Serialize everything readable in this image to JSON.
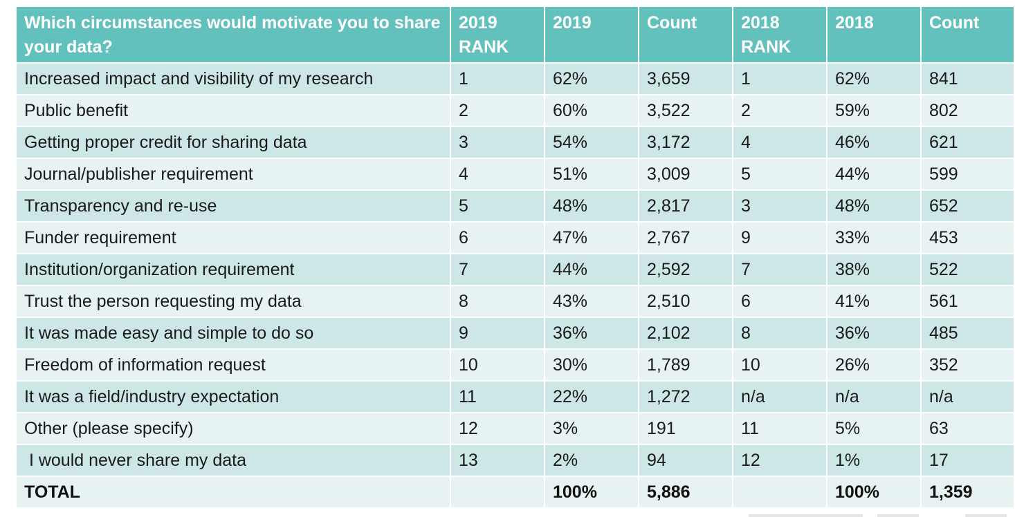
{
  "table": {
    "headers": [
      "Which circumstances would motivate you to share your data?",
      "2019 RANK",
      "2019",
      "Count",
      "2018 RANK",
      "2018",
      "Count"
    ],
    "rows": [
      [
        "Increased impact and visibility of my research",
        "1",
        "62%",
        "3,659",
        "1",
        "62%",
        "841"
      ],
      [
        "Public benefit",
        "2",
        "60%",
        "3,522",
        "2",
        "59%",
        "802"
      ],
      [
        "Getting proper credit for sharing data",
        "3",
        "54%",
        "3,172",
        "4",
        "46%",
        "621"
      ],
      [
        "Journal/publisher requirement",
        "4",
        "51%",
        "3,009",
        "5",
        "44%",
        "599"
      ],
      [
        "Transparency and re-use",
        "5",
        "48%",
        "2,817",
        "3",
        "48%",
        "652"
      ],
      [
        "Funder requirement",
        "6",
        "47%",
        "2,767",
        "9",
        "33%",
        "453"
      ],
      [
        "Institution/organization requirement",
        "7",
        "44%",
        "2,592",
        "7",
        "38%",
        "522"
      ],
      [
        "Trust the person requesting my data",
        "8",
        "43%",
        "2,510",
        "6",
        "41%",
        "561"
      ],
      [
        "It was made easy and simple to do so",
        "9",
        "36%",
        "2,102",
        "8",
        "36%",
        "485"
      ],
      [
        "Freedom of information request",
        "10",
        "30%",
        "1,789",
        "10",
        "26%",
        "352"
      ],
      [
        "It was a field/industry expectation",
        "11",
        "22%",
        "1,272",
        "n/a",
        "n/a",
        "n/a"
      ],
      [
        "Other (please specify)",
        "12",
        "3%",
        "191",
        "11",
        "5%",
        "63"
      ],
      [
        " I would never share my data",
        "13",
        "2%",
        "94",
        "12",
        "1%",
        "17"
      ]
    ],
    "total": [
      "TOTAL",
      "",
      "100%",
      "5,886",
      "",
      "100%",
      "1,359"
    ]
  },
  "colors": {
    "header_bg": "#63c1bd",
    "row_dark": "#cde7e6",
    "row_light": "#e7f3f2"
  }
}
